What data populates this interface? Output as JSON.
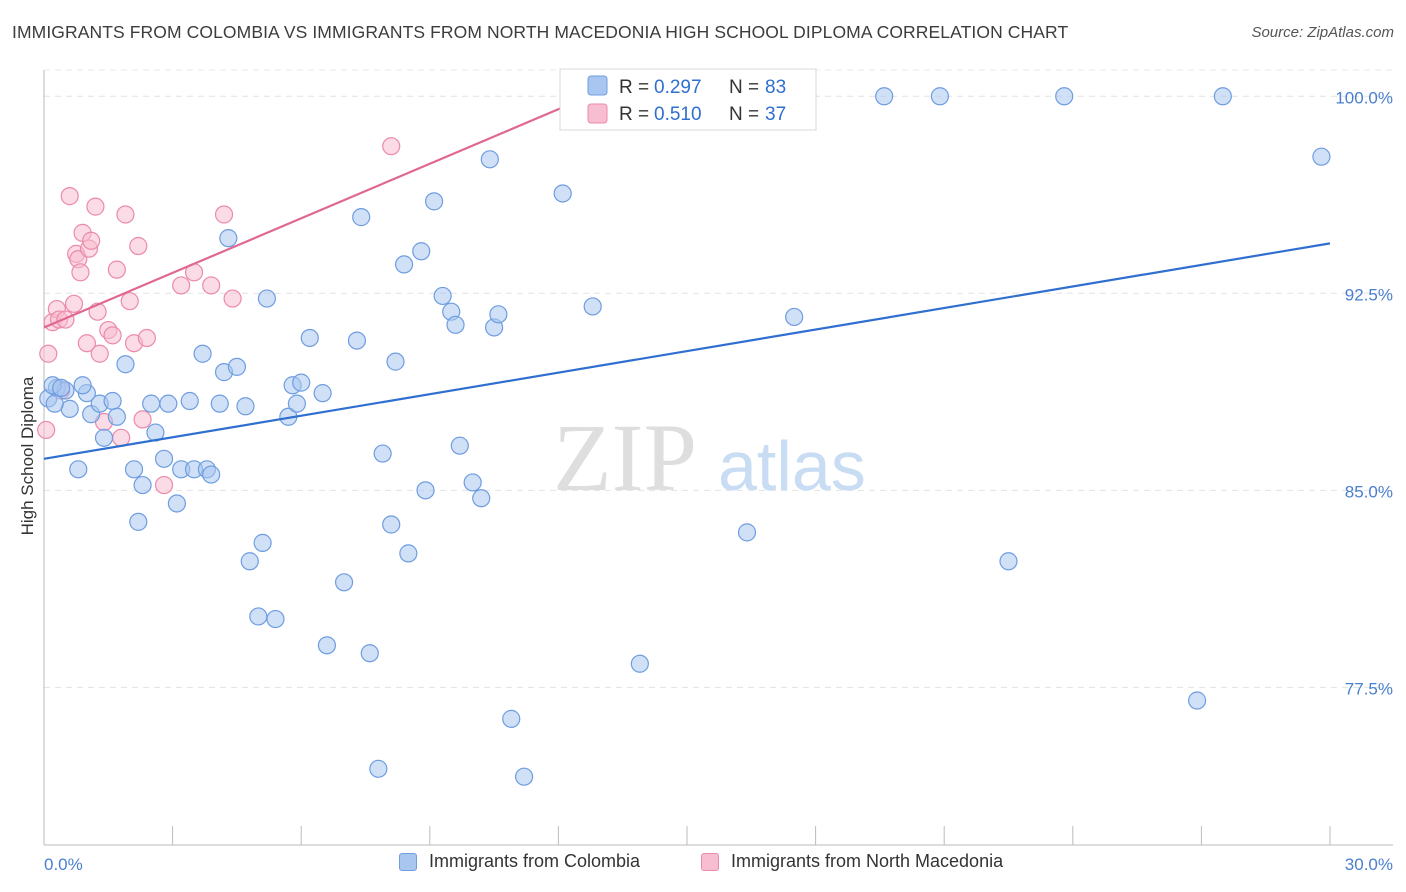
{
  "header": {
    "title": "IMMIGRANTS FROM COLOMBIA VS IMMIGRANTS FROM NORTH MACEDONIA HIGH SCHOOL DIPLOMA CORRELATION CHART",
    "source": "Source: ZipAtlas.com"
  },
  "watermark": {
    "zip": "ZIP",
    "atlas": "atlas"
  },
  "legend": {
    "colombia": {
      "r_label": "R = ",
      "r_value": "0.297",
      "n_label": "N = ",
      "n_value": "83"
    },
    "macedonia": {
      "r_label": "R = ",
      "r_value": "0.510",
      "n_label": "N = ",
      "n_value": "37"
    }
  },
  "bottom_legend": {
    "colombia": "Immigrants from Colombia",
    "macedonia": "Immigrants from North Macedonia"
  },
  "colors": {
    "colombia_fill": "#a8c6f0",
    "colombia_stroke": "#6f9de0",
    "colombia_line": "#2f6fd0",
    "macedonia_fill": "#f7bdd0",
    "macedonia_stroke": "#ec8aaa",
    "macedonia_line": "#e06890",
    "tick_label": "#4a7fcf"
  },
  "chart_data": {
    "type": "scatter",
    "title": "IMMIGRANTS FROM COLOMBIA VS IMMIGRANTS FROM NORTH MACEDONIA HIGH SCHOOL DIPLOMA CORRELATION CHART",
    "xlabel": "",
    "ylabel": "High School Diploma",
    "xlim": [
      0,
      30
    ],
    "ylim": [
      71.5,
      101
    ],
    "x_tick_labels": [
      "0.0%",
      "30.0%"
    ],
    "y_ticks": [
      {
        "value": 100.0,
        "label": "100.0%"
      },
      {
        "value": 92.5,
        "label": "92.5%"
      },
      {
        "value": 85.0,
        "label": "85.0%"
      },
      {
        "value": 77.5,
        "label": "77.5%"
      }
    ],
    "grid": true,
    "series": [
      {
        "name": "Immigrants from Colombia",
        "key": "colombia",
        "r": 0.297,
        "n": 83,
        "trend": {
          "x": [
            0,
            30
          ],
          "y": [
            86.2,
            94.4
          ]
        },
        "points": [
          [
            0.1,
            88.5
          ],
          [
            0.3,
            88.9
          ],
          [
            0.5,
            88.8
          ],
          [
            0.6,
            88.1
          ],
          [
            0.8,
            85.8
          ],
          [
            1.0,
            88.7
          ],
          [
            1.1,
            87.9
          ],
          [
            1.3,
            88.3
          ],
          [
            1.4,
            87.0
          ],
          [
            1.6,
            88.4
          ],
          [
            1.7,
            87.8
          ],
          [
            1.9,
            89.8
          ],
          [
            2.1,
            85.8
          ],
          [
            2.2,
            83.8
          ],
          [
            2.3,
            85.2
          ],
          [
            2.5,
            88.3
          ],
          [
            2.6,
            87.2
          ],
          [
            2.8,
            86.2
          ],
          [
            2.9,
            88.3
          ],
          [
            3.1,
            84.5
          ],
          [
            3.2,
            85.8
          ],
          [
            3.4,
            88.4
          ],
          [
            3.5,
            85.8
          ],
          [
            3.7,
            90.2
          ],
          [
            3.8,
            85.8
          ],
          [
            3.9,
            85.6
          ],
          [
            4.1,
            88.3
          ],
          [
            4.2,
            89.5
          ],
          [
            4.3,
            94.6
          ],
          [
            4.5,
            89.7
          ],
          [
            4.7,
            88.2
          ],
          [
            4.8,
            82.3
          ],
          [
            5.0,
            80.2
          ],
          [
            5.1,
            83.0
          ],
          [
            5.2,
            92.3
          ],
          [
            5.4,
            80.1
          ],
          [
            5.7,
            87.8
          ],
          [
            5.8,
            89.0
          ],
          [
            5.9,
            88.3
          ],
          [
            6.0,
            89.1
          ],
          [
            6.2,
            90.8
          ],
          [
            6.5,
            88.7
          ],
          [
            6.6,
            79.1
          ],
          [
            7.0,
            81.5
          ],
          [
            7.3,
            90.7
          ],
          [
            7.4,
            95.4
          ],
          [
            7.6,
            78.8
          ],
          [
            7.8,
            74.4
          ],
          [
            7.9,
            86.4
          ],
          [
            8.1,
            83.7
          ],
          [
            8.2,
            89.9
          ],
          [
            8.4,
            93.6
          ],
          [
            8.5,
            82.6
          ],
          [
            8.8,
            94.1
          ],
          [
            8.9,
            85.0
          ],
          [
            9.1,
            96.0
          ],
          [
            9.3,
            92.4
          ],
          [
            9.5,
            91.8
          ],
          [
            9.6,
            91.3
          ],
          [
            9.7,
            86.7
          ],
          [
            10.0,
            85.3
          ],
          [
            10.2,
            84.7
          ],
          [
            10.4,
            97.6
          ],
          [
            10.5,
            91.2
          ],
          [
            10.6,
            91.7
          ],
          [
            10.9,
            76.3
          ],
          [
            11.2,
            74.1
          ],
          [
            12.1,
            96.3
          ],
          [
            12.8,
            92.0
          ],
          [
            13.9,
            78.4
          ],
          [
            16.4,
            83.4
          ],
          [
            17.5,
            91.6
          ],
          [
            19.6,
            100.0
          ],
          [
            20.9,
            100.0
          ],
          [
            22.5,
            82.3
          ],
          [
            23.8,
            100.0
          ],
          [
            26.9,
            77.0
          ],
          [
            27.5,
            100.0
          ],
          [
            29.8,
            97.7
          ],
          [
            0.2,
            89.0
          ],
          [
            0.4,
            88.9
          ],
          [
            0.9,
            89.0
          ],
          [
            0.25,
            88.3
          ]
        ]
      },
      {
        "name": "Immigrants from North Macedonia",
        "key": "macedonia",
        "r": 0.51,
        "n": 37,
        "trend": {
          "x": [
            0,
            13.0
          ],
          "y": [
            91.2,
            100.2
          ]
        },
        "points": [
          [
            0.05,
            87.3
          ],
          [
            0.1,
            90.2
          ],
          [
            0.2,
            91.4
          ],
          [
            0.3,
            91.9
          ],
          [
            0.35,
            91.5
          ],
          [
            0.4,
            88.8
          ],
          [
            0.5,
            91.5
          ],
          [
            0.6,
            96.2
          ],
          [
            0.7,
            92.1
          ],
          [
            0.75,
            94.0
          ],
          [
            0.8,
            93.8
          ],
          [
            0.85,
            93.3
          ],
          [
            0.9,
            94.8
          ],
          [
            1.0,
            90.6
          ],
          [
            1.05,
            94.2
          ],
          [
            1.1,
            94.5
          ],
          [
            1.2,
            95.8
          ],
          [
            1.25,
            91.8
          ],
          [
            1.3,
            90.2
          ],
          [
            1.4,
            87.6
          ],
          [
            1.5,
            91.1
          ],
          [
            1.6,
            90.9
          ],
          [
            1.7,
            93.4
          ],
          [
            1.8,
            87.0
          ],
          [
            1.9,
            95.5
          ],
          [
            2.0,
            92.2
          ],
          [
            2.1,
            90.6
          ],
          [
            2.2,
            94.3
          ],
          [
            2.3,
            87.7
          ],
          [
            2.4,
            90.8
          ],
          [
            2.8,
            85.2
          ],
          [
            3.2,
            92.8
          ],
          [
            3.5,
            93.3
          ],
          [
            3.9,
            92.8
          ],
          [
            4.2,
            95.5
          ],
          [
            4.4,
            92.3
          ],
          [
            8.1,
            98.1
          ]
        ]
      }
    ]
  }
}
